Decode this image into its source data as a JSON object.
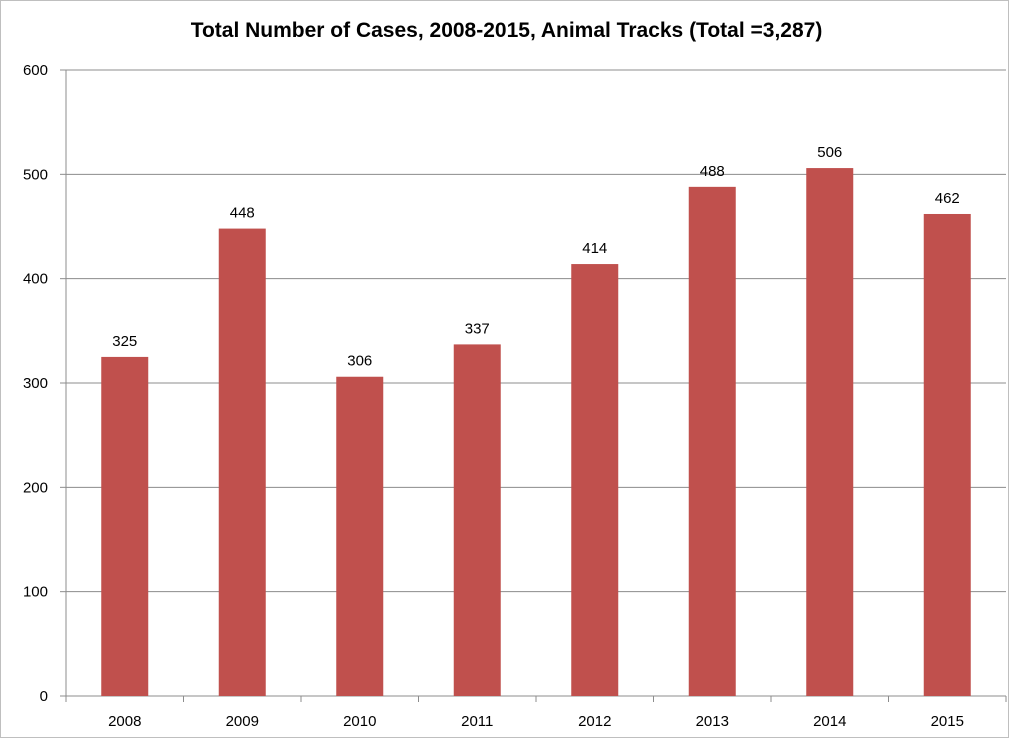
{
  "chart_data": {
    "type": "bar",
    "title": "Total Number of Cases, 2008-2015, Animal Tracks (Total =3,287)",
    "xlabel": "",
    "ylabel": "",
    "categories": [
      "2008",
      "2009",
      "2010",
      "2011",
      "2012",
      "2013",
      "2014",
      "2015"
    ],
    "values": [
      325,
      448,
      306,
      337,
      414,
      488,
      506,
      462
    ],
    "ylim": [
      0,
      600
    ],
    "yticks": [
      0,
      100,
      200,
      300,
      400,
      500,
      600
    ],
    "grid": true,
    "legend": "none",
    "bar_color": "#c0504d",
    "grid_color": "#8c8c8c",
    "data_labels": true
  }
}
